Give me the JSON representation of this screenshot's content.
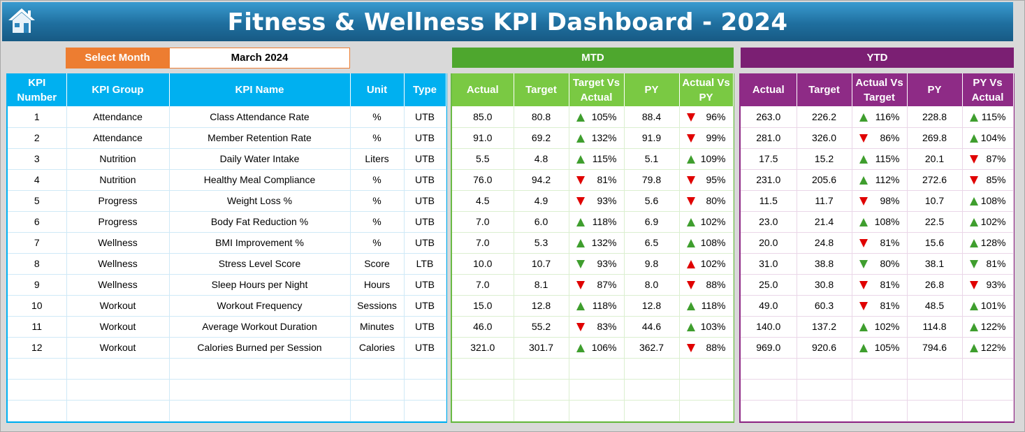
{
  "title": "Fitness & Wellness KPI Dashboard - 2024",
  "colors": {
    "title_bar": "#1f6f9f",
    "select_label": "#ed7d31",
    "mtd": "#4ea72e",
    "ytd": "#7b1f73",
    "kpi_header": "#00b0f0",
    "arrow_good": "#3f9e2e",
    "arrow_bad": "#e00000"
  },
  "icons": {
    "home": "home-icon"
  },
  "selector": {
    "label": "Select Month",
    "value": "March 2024"
  },
  "sections": {
    "mtd": "MTD",
    "ytd": "YTD"
  },
  "kpi_headers": [
    "KPI Number",
    "KPI Group",
    "KPI Name",
    "Unit",
    "Type"
  ],
  "mtd_headers": [
    "Actual",
    "Target",
    "Target Vs Actual",
    "PY",
    "Actual Vs PY"
  ],
  "ytd_headers": [
    "Actual",
    "Target",
    "Actual Vs Target",
    "PY",
    "PY Vs Actual"
  ],
  "rows": [
    {
      "num": "1",
      "group": "Attendance",
      "name": "Class Attendance Rate",
      "unit": "%",
      "type": "UTB",
      "mtd": {
        "actual": "85.0",
        "target": "80.8",
        "tva": "105%",
        "tva_arrow": "up-green",
        "py": "88.4",
        "avp": "96%",
        "avp_arrow": "down-red"
      },
      "ytd": {
        "actual": "263.0",
        "target": "226.2",
        "avt": "116%",
        "avt_arrow": "up-green",
        "py": "228.8",
        "pva": "115%",
        "pva_arrow": "up-green"
      }
    },
    {
      "num": "2",
      "group": "Attendance",
      "name": "Member Retention Rate",
      "unit": "%",
      "type": "UTB",
      "mtd": {
        "actual": "91.0",
        "target": "69.2",
        "tva": "132%",
        "tva_arrow": "up-green",
        "py": "91.9",
        "avp": "99%",
        "avp_arrow": "down-red"
      },
      "ytd": {
        "actual": "281.0",
        "target": "326.0",
        "avt": "86%",
        "avt_arrow": "down-red",
        "py": "269.8",
        "pva": "104%",
        "pva_arrow": "up-green"
      }
    },
    {
      "num": "3",
      "group": "Nutrition",
      "name": "Daily Water Intake",
      "unit": "Liters",
      "type": "UTB",
      "mtd": {
        "actual": "5.5",
        "target": "4.8",
        "tva": "115%",
        "tva_arrow": "up-green",
        "py": "5.1",
        "avp": "109%",
        "avp_arrow": "up-green"
      },
      "ytd": {
        "actual": "17.5",
        "target": "15.2",
        "avt": "115%",
        "avt_arrow": "up-green",
        "py": "20.1",
        "pva": "87%",
        "pva_arrow": "down-red"
      }
    },
    {
      "num": "4",
      "group": "Nutrition",
      "name": "Healthy Meal Compliance",
      "unit": "%",
      "type": "UTB",
      "mtd": {
        "actual": "76.0",
        "target": "94.2",
        "tva": "81%",
        "tva_arrow": "down-red",
        "py": "79.8",
        "avp": "95%",
        "avp_arrow": "down-red"
      },
      "ytd": {
        "actual": "231.0",
        "target": "205.6",
        "avt": "112%",
        "avt_arrow": "up-green",
        "py": "272.6",
        "pva": "85%",
        "pva_arrow": "down-red"
      }
    },
    {
      "num": "5",
      "group": "Progress",
      "name": "Weight Loss %",
      "unit": "%",
      "type": "UTB",
      "mtd": {
        "actual": "4.5",
        "target": "4.9",
        "tva": "93%",
        "tva_arrow": "down-red",
        "py": "5.6",
        "avp": "80%",
        "avp_arrow": "down-red"
      },
      "ytd": {
        "actual": "11.5",
        "target": "11.7",
        "avt": "98%",
        "avt_arrow": "down-red",
        "py": "10.7",
        "pva": "108%",
        "pva_arrow": "up-green"
      }
    },
    {
      "num": "6",
      "group": "Progress",
      "name": "Body Fat Reduction %",
      "unit": "%",
      "type": "UTB",
      "mtd": {
        "actual": "7.0",
        "target": "6.0",
        "tva": "118%",
        "tva_arrow": "up-green",
        "py": "6.9",
        "avp": "102%",
        "avp_arrow": "up-green"
      },
      "ytd": {
        "actual": "23.0",
        "target": "21.4",
        "avt": "108%",
        "avt_arrow": "up-green",
        "py": "22.5",
        "pva": "102%",
        "pva_arrow": "up-green"
      }
    },
    {
      "num": "7",
      "group": "Wellness",
      "name": "BMI Improvement %",
      "unit": "%",
      "type": "UTB",
      "mtd": {
        "actual": "7.0",
        "target": "5.3",
        "tva": "132%",
        "tva_arrow": "up-green",
        "py": "6.5",
        "avp": "108%",
        "avp_arrow": "up-green"
      },
      "ytd": {
        "actual": "20.0",
        "target": "24.8",
        "avt": "81%",
        "avt_arrow": "down-red",
        "py": "15.6",
        "pva": "128%",
        "pva_arrow": "up-green"
      }
    },
    {
      "num": "8",
      "group": "Wellness",
      "name": "Stress Level Score",
      "unit": "Score",
      "type": "LTB",
      "mtd": {
        "actual": "10.0",
        "target": "10.7",
        "tva": "93%",
        "tva_arrow": "down-green",
        "py": "9.8",
        "avp": "102%",
        "avp_arrow": "up-red"
      },
      "ytd": {
        "actual": "31.0",
        "target": "38.8",
        "avt": "80%",
        "avt_arrow": "down-green",
        "py": "38.1",
        "pva": "81%",
        "pva_arrow": "down-green"
      }
    },
    {
      "num": "9",
      "group": "Wellness",
      "name": "Sleep Hours per Night",
      "unit": "Hours",
      "type": "UTB",
      "mtd": {
        "actual": "7.0",
        "target": "8.1",
        "tva": "87%",
        "tva_arrow": "down-red",
        "py": "8.0",
        "avp": "88%",
        "avp_arrow": "down-red"
      },
      "ytd": {
        "actual": "25.0",
        "target": "30.8",
        "avt": "81%",
        "avt_arrow": "down-red",
        "py": "26.8",
        "pva": "93%",
        "pva_arrow": "down-red"
      }
    },
    {
      "num": "10",
      "group": "Workout",
      "name": "Workout Frequency",
      "unit": "Sessions",
      "type": "UTB",
      "mtd": {
        "actual": "15.0",
        "target": "12.8",
        "tva": "118%",
        "tva_arrow": "up-green",
        "py": "12.8",
        "avp": "118%",
        "avp_arrow": "up-green"
      },
      "ytd": {
        "actual": "49.0",
        "target": "60.3",
        "avt": "81%",
        "avt_arrow": "down-red",
        "py": "48.5",
        "pva": "101%",
        "pva_arrow": "up-green"
      }
    },
    {
      "num": "11",
      "group": "Workout",
      "name": "Average Workout Duration",
      "unit": "Minutes",
      "type": "UTB",
      "mtd": {
        "actual": "46.0",
        "target": "55.2",
        "tva": "83%",
        "tva_arrow": "down-red",
        "py": "44.6",
        "avp": "103%",
        "avp_arrow": "up-green"
      },
      "ytd": {
        "actual": "140.0",
        "target": "137.2",
        "avt": "102%",
        "avt_arrow": "up-green",
        "py": "114.8",
        "pva": "122%",
        "pva_arrow": "up-green"
      }
    },
    {
      "num": "12",
      "group": "Workout",
      "name": "Calories Burned per Session",
      "unit": "Calories",
      "type": "UTB",
      "mtd": {
        "actual": "321.0",
        "target": "301.7",
        "tva": "106%",
        "tva_arrow": "up-green",
        "py": "362.7",
        "avp": "88%",
        "avp_arrow": "down-red"
      },
      "ytd": {
        "actual": "969.0",
        "target": "920.6",
        "avt": "105%",
        "avt_arrow": "up-green",
        "py": "794.6",
        "pva": "122%",
        "pva_arrow": "up-green"
      }
    }
  ]
}
